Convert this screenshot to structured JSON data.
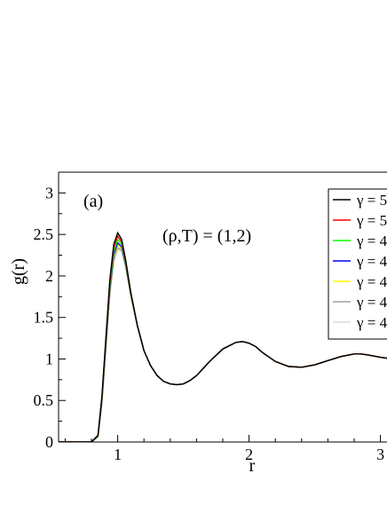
{
  "chart_data": {
    "type": "line",
    "panel_label": "(a)",
    "annotation": "(ρ,T) = (1,2)",
    "xlabel": "r",
    "ylabel": "g(r)",
    "xlim": [
      0.55,
      3.05
    ],
    "ylim": [
      0,
      3.25
    ],
    "xticks": [
      1,
      2,
      3
    ],
    "xtick_labels": [
      "1",
      "2",
      "3"
    ],
    "yticks": [
      0,
      0.5,
      1,
      1.5,
      2,
      2.5,
      3
    ],
    "ytick_labels": [
      "0",
      "0.5",
      "1",
      "1.5",
      "2",
      "2.5",
      "3"
    ],
    "grid": false,
    "legend": {
      "placement": "top-right",
      "entries": [
        {
          "label": "γ = 5",
          "color": "#000000"
        },
        {
          "label": "γ = 5",
          "color": "#ff0000"
        },
        {
          "label": "γ = 4",
          "color": "#00ff00"
        },
        {
          "label": "γ = 4",
          "color": "#0000ff"
        },
        {
          "label": "γ = 4",
          "color": "#ffff00"
        },
        {
          "label": "γ = 4",
          "color": "#a0a0a0"
        },
        {
          "label": "γ = 4",
          "color": "#dcdcdc"
        }
      ]
    },
    "x": [
      0.55,
      0.8,
      0.85,
      0.88,
      0.91,
      0.94,
      0.97,
      1.0,
      1.03,
      1.06,
      1.1,
      1.15,
      1.2,
      1.25,
      1.3,
      1.35,
      1.4,
      1.45,
      1.5,
      1.55,
      1.6,
      1.7,
      1.8,
      1.9,
      1.95,
      2.0,
      2.05,
      2.1,
      2.2,
      2.3,
      2.4,
      2.5,
      2.6,
      2.7,
      2.8,
      2.85,
      2.9,
      3.0,
      3.05
    ],
    "series": [
      {
        "color": "#000000",
        "values": [
          0,
          0.0,
          0.08,
          0.55,
          1.25,
          1.95,
          2.38,
          2.52,
          2.44,
          2.2,
          1.8,
          1.4,
          1.1,
          0.92,
          0.8,
          0.73,
          0.7,
          0.69,
          0.7,
          0.74,
          0.8,
          0.97,
          1.12,
          1.2,
          1.21,
          1.19,
          1.15,
          1.08,
          0.97,
          0.91,
          0.9,
          0.93,
          0.98,
          1.03,
          1.06,
          1.06,
          1.05,
          1.02,
          1.01
        ]
      },
      {
        "color": "#ff0000",
        "values": [
          0,
          0.0,
          0.08,
          0.54,
          1.23,
          1.92,
          2.34,
          2.48,
          2.41,
          2.18,
          1.79,
          1.4,
          1.1,
          0.92,
          0.8,
          0.73,
          0.7,
          0.69,
          0.7,
          0.74,
          0.8,
          0.97,
          1.12,
          1.2,
          1.21,
          1.19,
          1.15,
          1.08,
          0.97,
          0.91,
          0.9,
          0.93,
          0.98,
          1.03,
          1.06,
          1.06,
          1.05,
          1.02,
          1.01
        ]
      },
      {
        "color": "#00ff00",
        "values": [
          0,
          0.0,
          0.07,
          0.52,
          1.2,
          1.88,
          2.29,
          2.44,
          2.38,
          2.16,
          1.78,
          1.4,
          1.1,
          0.92,
          0.8,
          0.73,
          0.7,
          0.69,
          0.7,
          0.74,
          0.8,
          0.97,
          1.12,
          1.2,
          1.21,
          1.19,
          1.15,
          1.08,
          0.97,
          0.91,
          0.9,
          0.93,
          0.98,
          1.03,
          1.06,
          1.06,
          1.05,
          1.02,
          1.01
        ]
      },
      {
        "color": "#0000ff",
        "values": [
          0,
          0.0,
          0.07,
          0.5,
          1.17,
          1.84,
          2.25,
          2.4,
          2.35,
          2.14,
          1.77,
          1.4,
          1.1,
          0.92,
          0.8,
          0.73,
          0.7,
          0.69,
          0.7,
          0.74,
          0.8,
          0.97,
          1.12,
          1.2,
          1.21,
          1.19,
          1.15,
          1.08,
          0.97,
          0.91,
          0.9,
          0.93,
          0.98,
          1.03,
          1.06,
          1.06,
          1.05,
          1.02,
          1.01
        ]
      },
      {
        "color": "#ffff00",
        "values": [
          0,
          0.0,
          0.07,
          0.49,
          1.15,
          1.81,
          2.22,
          2.37,
          2.33,
          2.13,
          1.76,
          1.4,
          1.1,
          0.92,
          0.8,
          0.73,
          0.7,
          0.69,
          0.7,
          0.74,
          0.8,
          0.97,
          1.12,
          1.2,
          1.21,
          1.19,
          1.15,
          1.08,
          0.97,
          0.91,
          0.9,
          0.93,
          0.98,
          1.03,
          1.06,
          1.06,
          1.05,
          1.02,
          1.01
        ]
      },
      {
        "color": "#a0a0a0",
        "values": [
          0,
          0.0,
          0.06,
          0.47,
          1.12,
          1.78,
          2.19,
          2.34,
          2.31,
          2.12,
          1.76,
          1.4,
          1.1,
          0.92,
          0.8,
          0.73,
          0.7,
          0.69,
          0.7,
          0.74,
          0.8,
          0.97,
          1.12,
          1.2,
          1.21,
          1.19,
          1.15,
          1.08,
          0.97,
          0.91,
          0.9,
          0.93,
          0.98,
          1.03,
          1.06,
          1.06,
          1.05,
          1.02,
          1.01
        ]
      },
      {
        "color": "#dcdcdc",
        "values": [
          0,
          0.0,
          0.06,
          0.46,
          1.1,
          1.76,
          2.17,
          2.32,
          2.3,
          2.11,
          1.75,
          1.4,
          1.1,
          0.92,
          0.8,
          0.73,
          0.7,
          0.69,
          0.7,
          0.74,
          0.8,
          0.97,
          1.12,
          1.2,
          1.21,
          1.19,
          1.15,
          1.08,
          0.97,
          0.91,
          0.9,
          0.93,
          0.98,
          1.03,
          1.06,
          1.06,
          1.05,
          1.02,
          1.01
        ]
      }
    ]
  }
}
